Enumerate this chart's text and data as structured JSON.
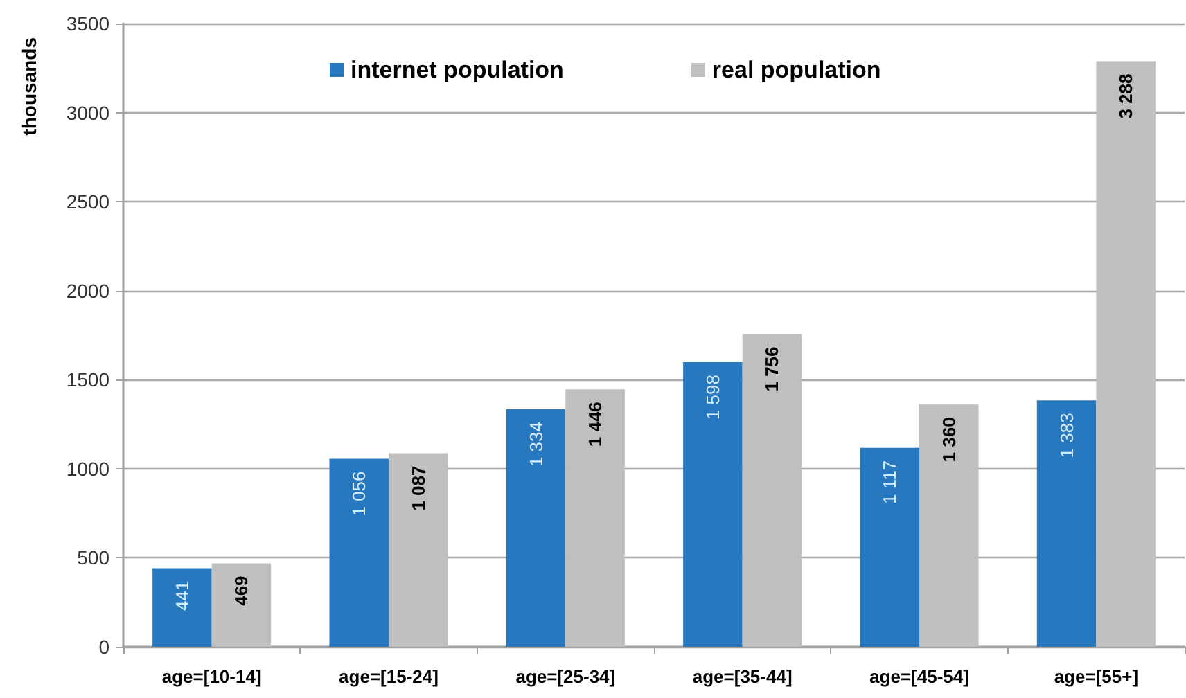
{
  "chart_data": {
    "type": "bar",
    "ylabel": "thousands",
    "categories": [
      "age=[10-14]",
      "age=[15-24]",
      "age=[25-34]",
      "age=[35-44]",
      "age=[45-54]",
      "age=[55+]"
    ],
    "series": [
      {
        "name": "internet population",
        "color": "#2878c0",
        "values": [
          441,
          1056,
          1334,
          1598,
          1117,
          1383
        ],
        "value_labels": [
          "441",
          "1 056",
          "1 334",
          "1 598",
          "1 117",
          "1 383"
        ]
      },
      {
        "name": "real population",
        "color": "#bfbfbf",
        "values": [
          469,
          1087,
          1446,
          1756,
          1360,
          3288
        ],
        "value_labels": [
          "469",
          "1 087",
          "1 446",
          "1 756",
          "1 360",
          "3 288"
        ]
      }
    ],
    "ylim": [
      0,
      3500
    ],
    "yticks": [
      0,
      500,
      1000,
      1500,
      2000,
      2500,
      3000,
      3500
    ],
    "grid": "y",
    "legend": "top"
  }
}
